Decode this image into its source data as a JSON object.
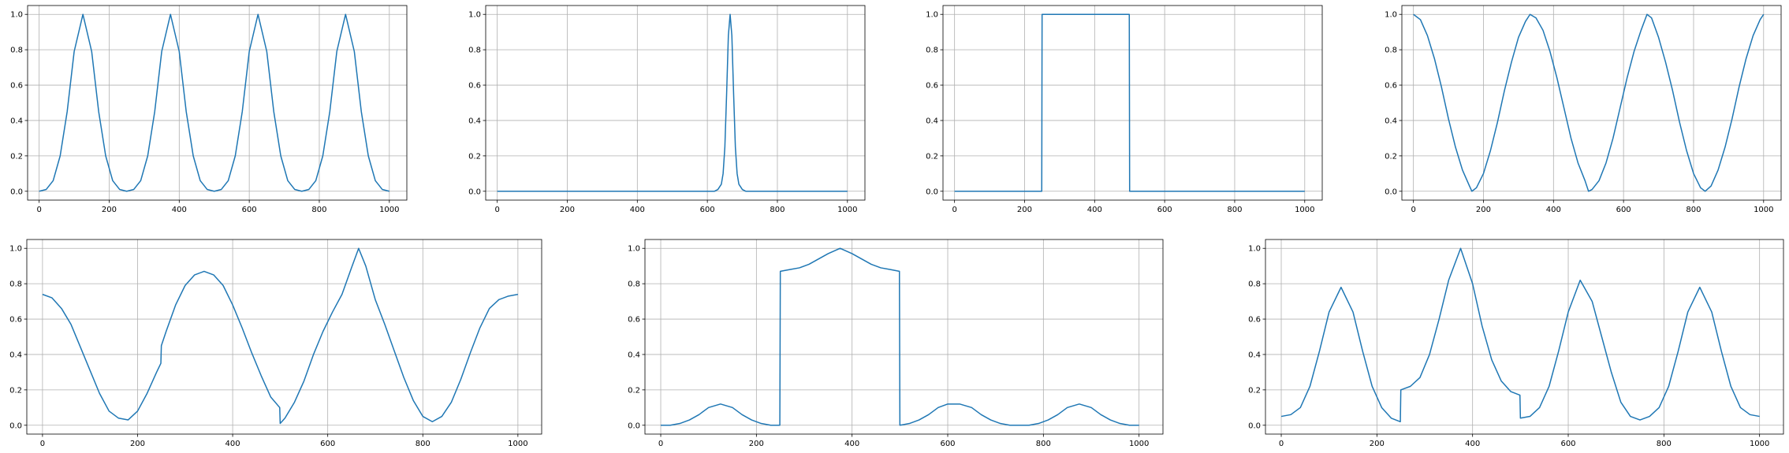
{
  "line_color": "#1f77b4",
  "grid_color": "#b0b0b0",
  "chart_data": [
    {
      "type": "line",
      "grid": true,
      "xlim": [
        -33,
        1050
      ],
      "ylim": [
        -0.05,
        1.05
      ],
      "xticks": [
        0,
        200,
        400,
        600,
        800,
        1000
      ],
      "yticks": [
        0.0,
        0.2,
        0.4,
        0.6,
        0.8,
        1.0
      ],
      "xtick_labels": [
        "0",
        "200",
        "400",
        "600",
        "800",
        "1000"
      ],
      "ytick_labels": [
        "0.0",
        "0.2",
        "0.4",
        "0.6",
        "0.8",
        "1.0"
      ],
      "series": [
        {
          "x": [
            0,
            20,
            40,
            60,
            80,
            100,
            125,
            150,
            170,
            190,
            210,
            230,
            250,
            270,
            290,
            310,
            330,
            350,
            375,
            400,
            420,
            440,
            460,
            480,
            500,
            520,
            540,
            560,
            580,
            600,
            625,
            650,
            670,
            690,
            710,
            730,
            750,
            770,
            790,
            810,
            830,
            850,
            875,
            900,
            920,
            940,
            960,
            980,
            1000
          ],
          "y": [
            0.0,
            0.01,
            0.06,
            0.2,
            0.45,
            0.79,
            1.0,
            0.79,
            0.45,
            0.2,
            0.06,
            0.01,
            0.0,
            0.01,
            0.06,
            0.2,
            0.45,
            0.79,
            1.0,
            0.79,
            0.45,
            0.2,
            0.06,
            0.01,
            0.0,
            0.01,
            0.06,
            0.2,
            0.45,
            0.79,
            1.0,
            0.79,
            0.45,
            0.2,
            0.06,
            0.01,
            0.0,
            0.01,
            0.06,
            0.2,
            0.45,
            0.79,
            1.0,
            0.79,
            0.45,
            0.2,
            0.06,
            0.01,
            0.0
          ]
        }
      ]
    },
    {
      "type": "line",
      "grid": true,
      "xlim": [
        -33,
        1050
      ],
      "ylim": [
        -0.05,
        1.05
      ],
      "xticks": [
        0,
        200,
        400,
        600,
        800,
        1000
      ],
      "yticks": [
        0.0,
        0.2,
        0.4,
        0.6,
        0.8,
        1.0
      ],
      "xtick_labels": [
        "0",
        "200",
        "400",
        "600",
        "800",
        "1000"
      ],
      "ytick_labels": [
        "0.0",
        "0.2",
        "0.4",
        "0.6",
        "0.8",
        "1.0"
      ],
      "series": [
        {
          "x": [
            0,
            600,
            620,
            630,
            640,
            645,
            650,
            655,
            660,
            665,
            670,
            675,
            680,
            685,
            690,
            700,
            710,
            730,
            1000
          ],
          "y": [
            0.0,
            0.0,
            0.0,
            0.01,
            0.04,
            0.1,
            0.25,
            0.55,
            0.88,
            1.0,
            0.88,
            0.55,
            0.25,
            0.1,
            0.04,
            0.01,
            0.0,
            0.0,
            0.0
          ]
        }
      ]
    },
    {
      "type": "line",
      "grid": true,
      "xlim": [
        -33,
        1050
      ],
      "ylim": [
        -0.05,
        1.05
      ],
      "xticks": [
        0,
        200,
        400,
        600,
        800,
        1000
      ],
      "yticks": [
        0.0,
        0.2,
        0.4,
        0.6,
        0.8,
        1.0
      ],
      "xtick_labels": [
        "0",
        "200",
        "400",
        "600",
        "800",
        "1000"
      ],
      "ytick_labels": [
        "0.0",
        "0.2",
        "0.4",
        "0.6",
        "0.8",
        "1.0"
      ],
      "series": [
        {
          "x": [
            0,
            249,
            250,
            499,
            500,
            1000
          ],
          "y": [
            0.0,
            0.0,
            1.0,
            1.0,
            0.0,
            0.0
          ]
        }
      ]
    },
    {
      "type": "line",
      "grid": true,
      "xlim": [
        -33,
        1050
      ],
      "ylim": [
        -0.05,
        1.05
      ],
      "xticks": [
        0,
        200,
        400,
        600,
        800,
        1000
      ],
      "yticks": [
        0.0,
        0.2,
        0.4,
        0.6,
        0.8,
        1.0
      ],
      "xtick_labels": [
        "0",
        "200",
        "400",
        "600",
        "800",
        "1000"
      ],
      "ytick_labels": [
        "0.0",
        "0.2",
        "0.4",
        "0.6",
        "0.8",
        "1.0"
      ],
      "series": [
        {
          "x": [
            0,
            20,
            40,
            60,
            80,
            100,
            120,
            140,
            160,
            167,
            180,
            200,
            220,
            240,
            260,
            280,
            300,
            320,
            333,
            350,
            370,
            390,
            410,
            430,
            450,
            470,
            490,
            500,
            510,
            530,
            550,
            570,
            590,
            610,
            630,
            650,
            667,
            680,
            700,
            720,
            740,
            760,
            780,
            800,
            820,
            833,
            850,
            870,
            890,
            910,
            930,
            950,
            970,
            990,
            1000
          ],
          "y": [
            1.0,
            0.97,
            0.88,
            0.75,
            0.59,
            0.41,
            0.25,
            0.12,
            0.03,
            0.0,
            0.02,
            0.1,
            0.23,
            0.39,
            0.57,
            0.73,
            0.87,
            0.96,
            1.0,
            0.98,
            0.91,
            0.79,
            0.64,
            0.47,
            0.3,
            0.16,
            0.06,
            0.0,
            0.01,
            0.06,
            0.16,
            0.3,
            0.47,
            0.64,
            0.79,
            0.91,
            1.0,
            0.98,
            0.87,
            0.73,
            0.57,
            0.39,
            0.23,
            0.1,
            0.02,
            0.0,
            0.03,
            0.12,
            0.25,
            0.41,
            0.59,
            0.75,
            0.88,
            0.97,
            1.0
          ]
        }
      ]
    },
    {
      "type": "line",
      "grid": true,
      "xlim": [
        -33,
        1050
      ],
      "ylim": [
        -0.05,
        1.05
      ],
      "xticks": [
        0,
        200,
        400,
        600,
        800,
        1000
      ],
      "yticks": [
        0.0,
        0.2,
        0.4,
        0.6,
        0.8,
        1.0
      ],
      "xtick_labels": [
        "0",
        "200",
        "400",
        "600",
        "800",
        "1000"
      ],
      "ytick_labels": [
        "0.0",
        "0.2",
        "0.4",
        "0.6",
        "0.8",
        "1.0"
      ],
      "series": [
        {
          "x": [
            0,
            20,
            40,
            60,
            80,
            100,
            120,
            140,
            160,
            180,
            200,
            220,
            240,
            249,
            250,
            260,
            280,
            300,
            320,
            340,
            360,
            380,
            400,
            420,
            440,
            460,
            480,
            499,
            500,
            510,
            530,
            550,
            570,
            590,
            610,
            630,
            650,
            665,
            680,
            700,
            720,
            740,
            760,
            780,
            800,
            820,
            840,
            860,
            880,
            900,
            920,
            940,
            960,
            980,
            1000
          ],
          "y": [
            0.74,
            0.72,
            0.66,
            0.57,
            0.44,
            0.31,
            0.18,
            0.08,
            0.04,
            0.03,
            0.08,
            0.18,
            0.3,
            0.35,
            0.45,
            0.53,
            0.68,
            0.79,
            0.85,
            0.87,
            0.85,
            0.79,
            0.68,
            0.55,
            0.41,
            0.28,
            0.16,
            0.1,
            0.01,
            0.04,
            0.13,
            0.25,
            0.4,
            0.53,
            0.64,
            0.74,
            0.89,
            1.0,
            0.9,
            0.71,
            0.57,
            0.42,
            0.27,
            0.14,
            0.05,
            0.02,
            0.05,
            0.13,
            0.26,
            0.41,
            0.55,
            0.66,
            0.71,
            0.73,
            0.74
          ]
        }
      ]
    },
    {
      "type": "line",
      "grid": true,
      "xlim": [
        -33,
        1050
      ],
      "ylim": [
        -0.05,
        1.05
      ],
      "xticks": [
        0,
        200,
        400,
        600,
        800,
        1000
      ],
      "yticks": [
        0.0,
        0.2,
        0.4,
        0.6,
        0.8,
        1.0
      ],
      "xtick_labels": [
        "0",
        "200",
        "400",
        "600",
        "800",
        "1000"
      ],
      "ytick_labels": [
        "0.0",
        "0.2",
        "0.4",
        "0.6",
        "0.8",
        "1.0"
      ],
      "series": [
        {
          "x": [
            0,
            20,
            40,
            60,
            80,
            100,
            125,
            150,
            170,
            190,
            210,
            230,
            249,
            250,
            270,
            290,
            310,
            330,
            350,
            375,
            400,
            420,
            440,
            460,
            480,
            499,
            500,
            520,
            540,
            560,
            580,
            600,
            625,
            650,
            670,
            690,
            710,
            730,
            750,
            770,
            790,
            810,
            830,
            850,
            875,
            900,
            920,
            940,
            960,
            980,
            1000
          ],
          "y": [
            0.0,
            0.0,
            0.01,
            0.03,
            0.06,
            0.1,
            0.12,
            0.1,
            0.06,
            0.03,
            0.01,
            0.0,
            0.0,
            0.87,
            0.88,
            0.89,
            0.91,
            0.94,
            0.97,
            1.0,
            0.97,
            0.94,
            0.91,
            0.89,
            0.88,
            0.87,
            0.0,
            0.01,
            0.03,
            0.06,
            0.1,
            0.12,
            0.12,
            0.1,
            0.06,
            0.03,
            0.01,
            0.0,
            0.0,
            0.0,
            0.01,
            0.03,
            0.06,
            0.1,
            0.12,
            0.1,
            0.06,
            0.03,
            0.01,
            0.0,
            0.0
          ]
        }
      ]
    },
    {
      "type": "line",
      "grid": true,
      "xlim": [
        -33,
        1050
      ],
      "ylim": [
        -0.05,
        1.05
      ],
      "xticks": [
        0,
        200,
        400,
        600,
        800,
        1000
      ],
      "yticks": [
        0.0,
        0.2,
        0.4,
        0.6,
        0.8,
        1.0
      ],
      "xtick_labels": [
        "0",
        "200",
        "400",
        "600",
        "800",
        "1000"
      ],
      "ytick_labels": [
        "0.0",
        "0.2",
        "0.4",
        "0.6",
        "0.8",
        "1.0"
      ],
      "series": [
        {
          "x": [
            0,
            20,
            40,
            60,
            80,
            100,
            125,
            150,
            170,
            190,
            210,
            230,
            249,
            250,
            270,
            290,
            310,
            330,
            350,
            375,
            400,
            420,
            440,
            460,
            480,
            499,
            500,
            520,
            540,
            560,
            580,
            600,
            625,
            650,
            670,
            690,
            710,
            730,
            750,
            770,
            790,
            810,
            830,
            850,
            875,
            900,
            920,
            940,
            960,
            980,
            1000
          ],
          "y": [
            0.05,
            0.06,
            0.1,
            0.22,
            0.42,
            0.64,
            0.78,
            0.64,
            0.42,
            0.22,
            0.1,
            0.04,
            0.02,
            0.2,
            0.22,
            0.27,
            0.4,
            0.6,
            0.82,
            1.0,
            0.8,
            0.56,
            0.37,
            0.25,
            0.19,
            0.17,
            0.04,
            0.05,
            0.1,
            0.22,
            0.42,
            0.64,
            0.82,
            0.7,
            0.5,
            0.3,
            0.13,
            0.05,
            0.03,
            0.05,
            0.1,
            0.22,
            0.42,
            0.64,
            0.78,
            0.64,
            0.42,
            0.22,
            0.1,
            0.06,
            0.05
          ]
        }
      ]
    }
  ]
}
